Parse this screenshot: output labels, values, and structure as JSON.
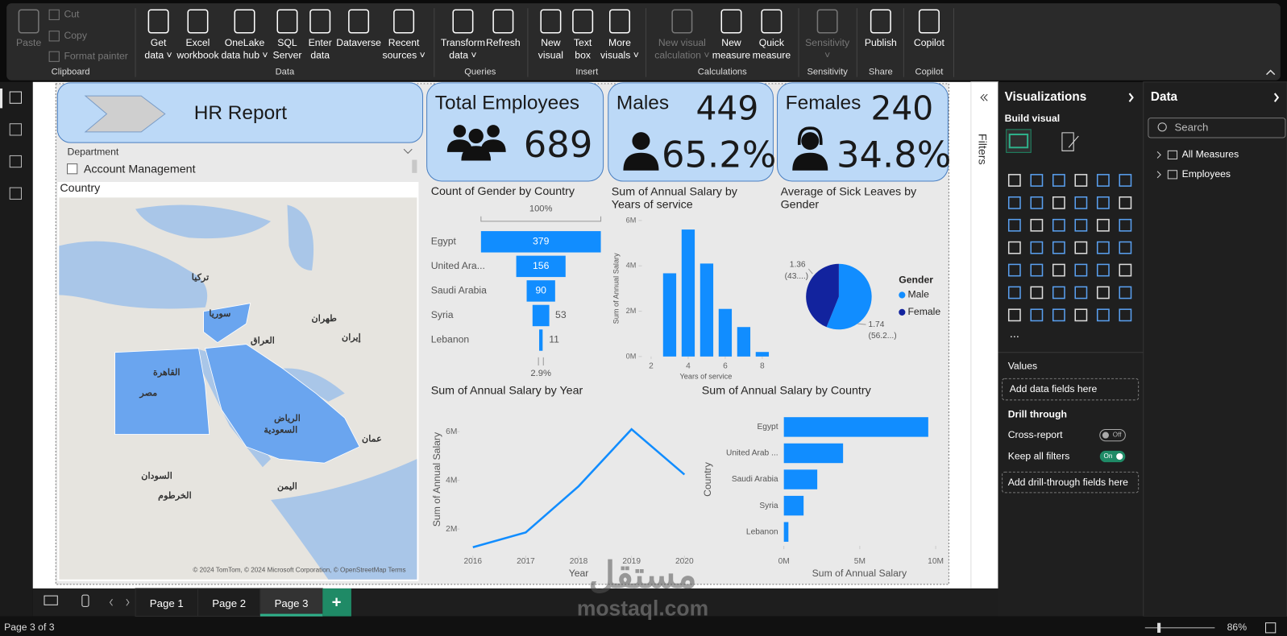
{
  "ribbon": {
    "groups": [
      {
        "label": "Clipboard",
        "buttons": [
          {
            "lines": [
              "Paste"
            ],
            "disabled": true
          },
          {
            "lines": [
              "Cut"
            ],
            "disabled": true
          },
          {
            "lines": [
              "Copy"
            ],
            "disabled": true
          },
          {
            "lines": [
              "Format painter"
            ],
            "disabled": true
          }
        ]
      },
      {
        "label": "Data",
        "buttons": [
          {
            "lines": [
              "Get",
              "data ˅"
            ]
          },
          {
            "lines": [
              "Excel",
              "workbook"
            ]
          },
          {
            "lines": [
              "OneLake",
              "data hub ˅"
            ]
          },
          {
            "lines": [
              "SQL",
              "Server"
            ]
          },
          {
            "lines": [
              "Enter",
              "data"
            ]
          },
          {
            "lines": [
              "Dataverse"
            ]
          },
          {
            "lines": [
              "Recent",
              "sources ˅"
            ]
          }
        ]
      },
      {
        "label": "Queries",
        "buttons": [
          {
            "lines": [
              "Transform",
              "data ˅"
            ]
          },
          {
            "lines": [
              "Refresh"
            ]
          }
        ]
      },
      {
        "label": "Insert",
        "buttons": [
          {
            "lines": [
              "New",
              "visual"
            ]
          },
          {
            "lines": [
              "Text",
              "box"
            ]
          },
          {
            "lines": [
              "More",
              "visuals ˅"
            ]
          }
        ]
      },
      {
        "label": "Calculations",
        "buttons": [
          {
            "lines": [
              "New visual",
              "calculation ˅"
            ],
            "disabled": true
          },
          {
            "lines": [
              "New",
              "measure"
            ]
          },
          {
            "lines": [
              "Quick",
              "measure"
            ]
          }
        ]
      },
      {
        "label": "Sensitivity",
        "buttons": [
          {
            "lines": [
              "Sensitivity",
              "˅"
            ],
            "disabled": true
          }
        ]
      },
      {
        "label": "Share",
        "buttons": [
          {
            "lines": [
              "Publish"
            ]
          }
        ]
      },
      {
        "label": "Copilot",
        "buttons": [
          {
            "lines": [
              "Copilot"
            ]
          }
        ]
      }
    ]
  },
  "header": {
    "title": "HR Report"
  },
  "slicer": {
    "title": "Department",
    "items": [
      "Account Management"
    ]
  },
  "map": {
    "title": "Country",
    "labels": [
      "مصر",
      "السعودية",
      "الرياض",
      "سوريا",
      "العراق",
      "إيران",
      "تركيا",
      "القاهرة",
      "طهران",
      "اليمن",
      "السودان",
      "عمان",
      "الخرطوم"
    ],
    "attribution": "© 2024 TomTom, © 2024 Microsoft Corporation, © OpenStreetMap Terms"
  },
  "cards": {
    "total": {
      "label": "Total Employees",
      "value": 689
    },
    "males": {
      "label": "Males",
      "count": 449,
      "share": "65.2%"
    },
    "females": {
      "label": "Females",
      "count": 240,
      "share": "34.8%"
    }
  },
  "funnel": {
    "type": "funnel",
    "title": "Count of Gender by Country",
    "categories": [
      "Egypt",
      "United Ara...",
      "Saudi Arabia",
      "Syria",
      "Lebanon"
    ],
    "values": [
      379,
      156,
      90,
      53,
      11
    ],
    "color": "#118dff",
    "top_label": "100%",
    "bottom_label": "2.9%"
  },
  "service": {
    "type": "bar",
    "title": "Sum of Annual Salary by Years of service",
    "x": [
      3,
      4,
      5,
      6,
      7,
      8
    ],
    "values": [
      3670000,
      5600000,
      4100000,
      2100000,
      1300000,
      200000
    ],
    "color": "#118dff",
    "xlim": [
      1.5,
      8.5
    ],
    "xticks": [
      2,
      4,
      6,
      8
    ],
    "ylim": [
      0,
      6000000
    ],
    "yticks": [
      {
        "value": 0,
        "label": "0M"
      },
      {
        "value": 2000000,
        "label": "2M"
      },
      {
        "value": 4000000,
        "label": "4M"
      },
      {
        "value": 6000000,
        "label": "6M"
      }
    ],
    "xlabel": "Years of service",
    "ylabel": "Sum of Annual Salary"
  },
  "pie": {
    "type": "pie",
    "title": "Average of Sick Leaves by Gender",
    "legend_title": "Gender",
    "categories": [
      "Male",
      "Female"
    ],
    "values": [
      1.74,
      1.36
    ],
    "percent_labels": [
      "(56.2...)",
      "(43....)"
    ],
    "colors": [
      "#118dff",
      "#12239e"
    ]
  },
  "line": {
    "type": "line",
    "title": "Sum of Annual Salary by Year",
    "x": [
      2016,
      2017,
      2018,
      2019,
      2020
    ],
    "values": [
      1250000,
      1860000,
      3760000,
      6100000,
      4240000
    ],
    "color": "#118dff",
    "xlim": [
      2015.75,
      2020.25
    ],
    "xticks": [
      2016,
      2017,
      2018,
      2019,
      2020
    ],
    "ylim": [
      500000,
      6900000
    ],
    "yticks": [
      {
        "value": 2000000,
        "label": "2M"
      },
      {
        "value": 4000000,
        "label": "4M"
      },
      {
        "value": 6000000,
        "label": "6M"
      }
    ],
    "xlabel": "Year",
    "ylabel": "Sum of Annual Salary"
  },
  "country_bar": {
    "type": "hbar",
    "title": "Sum of Annual Salary by Country",
    "categories": [
      "Egypt",
      "United Arab ...",
      "Saudi Arabia",
      "Syria",
      "Lebanon"
    ],
    "values": [
      9510000,
      3900000,
      2200000,
      1300000,
      300000
    ],
    "color": "#118dff",
    "xlim": [
      0,
      10000000
    ],
    "xticks": [
      {
        "value": 0,
        "label": "0M"
      },
      {
        "value": 5000000,
        "label": "5M"
      },
      {
        "value": 10000000,
        "label": "10M"
      }
    ],
    "xlabel": "Sum of Annual Salary",
    "ylabel": "Country"
  },
  "filters": {
    "label": "Filters"
  },
  "visualizations": {
    "title": "Visualizations",
    "build": "Build visual",
    "more": "...",
    "values_label": "Values",
    "values_placeholder": "Add data fields here",
    "drill": {
      "title": "Drill through",
      "cross_report": "Cross-report",
      "cross_state": "Off",
      "keep_filters": "Keep all filters",
      "keep_state": "On",
      "placeholder": "Add drill-through fields here"
    }
  },
  "data_pane": {
    "title": "Data",
    "search": "Search",
    "tables": [
      "All Measures",
      "Employees"
    ]
  },
  "tabs": {
    "pages": [
      "Page 1",
      "Page 2",
      "Page 3"
    ],
    "active": 2,
    "add": "+"
  },
  "status": {
    "page": "Page 3 of 3",
    "zoom": "86%"
  },
  "watermark": {
    "arabic": "مستقل",
    "site": "mostaql.com"
  }
}
